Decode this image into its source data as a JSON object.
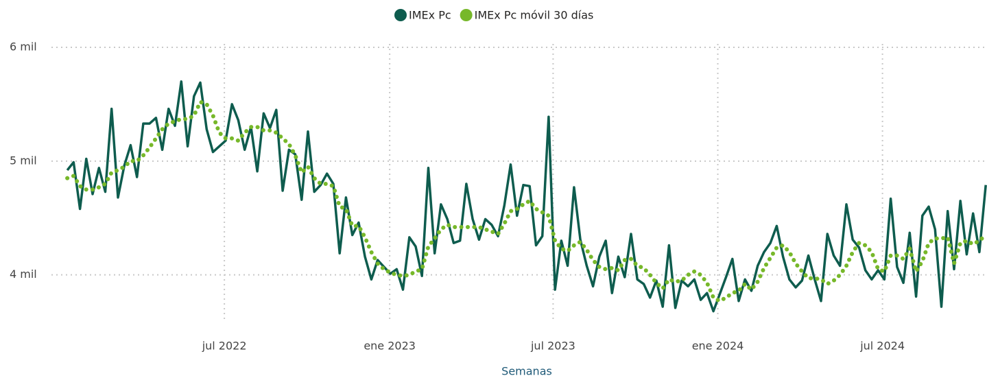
{
  "chart_data": {
    "type": "line",
    "x_label": "Semanas",
    "x": [
      0,
      1,
      2,
      3,
      4,
      5,
      6,
      7,
      8,
      9,
      10,
      11,
      12,
      13,
      14,
      15,
      16,
      17,
      18,
      19,
      20,
      21,
      22,
      23,
      24,
      25,
      26,
      27,
      28,
      29,
      30,
      31,
      32,
      33,
      34,
      35,
      36,
      37,
      38,
      39,
      40,
      41,
      42,
      43,
      44,
      45,
      46,
      47,
      48,
      49,
      50,
      51,
      52,
      53,
      54,
      55,
      56,
      57,
      58,
      59,
      60,
      61,
      62,
      63,
      64,
      65,
      66,
      67,
      68,
      69,
      70,
      71,
      72,
      73,
      74,
      75,
      76,
      77,
      78,
      79,
      80,
      81,
      82,
      83,
      84,
      85,
      86,
      87,
      88,
      89,
      90,
      91,
      92,
      93,
      94,
      95,
      96,
      97,
      98,
      99,
      100,
      101,
      102,
      103,
      104,
      105,
      106,
      107,
      108,
      109,
      110,
      111,
      112,
      113,
      114,
      115,
      116,
      117,
      118,
      119,
      120,
      121,
      122,
      123,
      124,
      125,
      126,
      127,
      128,
      129,
      130,
      131,
      132,
      133,
      134,
      135,
      136,
      137,
      138,
      139,
      140,
      141,
      142,
      143,
      144,
      145
    ],
    "series": [
      {
        "name": "IMEx Pc",
        "color": "#0e5c4e",
        "style": "solid",
        "values": [
          4920,
          4990,
          4580,
          5020,
          4710,
          4940,
          4730,
          5460,
          4680,
          4960,
          5140,
          4860,
          5330,
          5330,
          5380,
          5100,
          5460,
          5310,
          5700,
          5130,
          5570,
          5690,
          5280,
          5080,
          5130,
          5180,
          5500,
          5360,
          5100,
          5300,
          4910,
          5420,
          5290,
          5450,
          4740,
          5100,
          5060,
          4660,
          5260,
          4730,
          4790,
          4890,
          4800,
          4190,
          4680,
          4350,
          4460,
          4160,
          3960,
          4130,
          4070,
          4010,
          4050,
          3870,
          4330,
          4250,
          3990,
          4940,
          4190,
          4620,
          4490,
          4280,
          4300,
          4800,
          4490,
          4310,
          4490,
          4440,
          4340,
          4610,
          4970,
          4520,
          4790,
          4780,
          4260,
          4340,
          5390,
          3870,
          4300,
          4080,
          4770,
          4310,
          4080,
          3900,
          4160,
          4300,
          3840,
          4160,
          3980,
          4360,
          3960,
          3920,
          3800,
          3950,
          3720,
          4260,
          3710,
          3950,
          3900,
          3960,
          3780,
          3840,
          3680,
          3830,
          3980,
          4140,
          3770,
          3960,
          3860,
          4080,
          4200,
          4280,
          4430,
          4160,
          3960,
          3890,
          3950,
          4170,
          3960,
          3770,
          4360,
          4170,
          4080,
          4620,
          4310,
          4240,
          4040,
          3960,
          4040,
          3960,
          4670,
          4070,
          3930,
          4370,
          3810,
          4520,
          4600,
          4400,
          3720,
          4560,
          4050,
          4650,
          4180,
          4540,
          4200,
          4790
        ]
      },
      {
        "name": "IMEx Pc móvil 30 días",
        "color": "#77b82a",
        "style": "dotted",
        "values": [
          4850,
          4870,
          4780,
          4750,
          4750,
          4770,
          4800,
          4900,
          4920,
          4950,
          5000,
          5000,
          5050,
          5120,
          5200,
          5280,
          5330,
          5350,
          5370,
          5370,
          5400,
          5520,
          5500,
          5400,
          5250,
          5200,
          5200,
          5180,
          5250,
          5300,
          5300,
          5270,
          5270,
          5250,
          5200,
          5150,
          5050,
          4900,
          4950,
          4850,
          4800,
          4800,
          4780,
          4600,
          4580,
          4430,
          4430,
          4330,
          4200,
          4100,
          4050,
          4020,
          4000,
          3990,
          4000,
          4030,
          4050,
          4250,
          4320,
          4400,
          4440,
          4420,
          4420,
          4420,
          4420,
          4420,
          4400,
          4380,
          4360,
          4450,
          4560,
          4580,
          4620,
          4650,
          4580,
          4550,
          4520,
          4300,
          4230,
          4210,
          4260,
          4290,
          4220,
          4130,
          4070,
          4050,
          4060,
          4040,
          4130,
          4140,
          4080,
          4060,
          4000,
          3930,
          3880,
          3960,
          3940,
          3950,
          4000,
          4030,
          4000,
          3930,
          3800,
          3770,
          3800,
          3840,
          3860,
          3920,
          3870,
          3940,
          4060,
          4150,
          4240,
          4260,
          4200,
          4100,
          4030,
          3970,
          3970,
          3960,
          3920,
          3950,
          4000,
          4080,
          4200,
          4280,
          4260,
          4200,
          4050,
          4030,
          4170,
          4170,
          4140,
          4230,
          4030,
          4120,
          4280,
          4320,
          4320,
          4330,
          4100,
          4280,
          4300,
          4270,
          4300,
          4350
        ]
      }
    ],
    "xlim": [
      -2.5,
      145.2
    ],
    "xticks": [
      {
        "value": 24.8,
        "label": "jul 2022"
      },
      {
        "value": 50.9,
        "label": "ene 2023"
      },
      {
        "value": 76.7,
        "label": "jul 2023"
      },
      {
        "value": 102.7,
        "label": "ene 2024"
      },
      {
        "value": 128.7,
        "label": "jul 2024"
      }
    ],
    "ylim": [
      3600,
      6000
    ],
    "yticks": [
      {
        "value": 4000,
        "label": "4 mil"
      },
      {
        "value": 5000,
        "label": "5 mil"
      },
      {
        "value": 6000,
        "label": "6 mil"
      }
    ],
    "grid": true,
    "legend": "top"
  }
}
